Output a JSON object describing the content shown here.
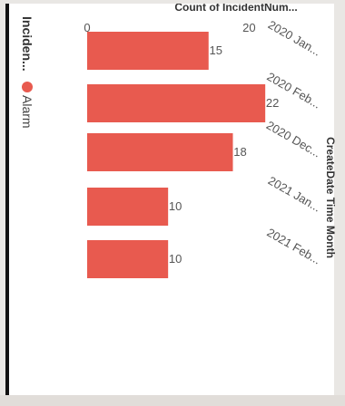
{
  "legend": {
    "title": "Inciden...",
    "items": [
      {
        "label": "Alarm",
        "color": "#e85a4f"
      }
    ]
  },
  "chart_data": {
    "type": "bar",
    "orientation": "rotated-90-clockwise",
    "categories": [
      "2020 Jan...",
      "2020 Feb...",
      "2020 Dec...",
      "2021 Jan...",
      "2021 Feb..."
    ],
    "series": [
      {
        "name": "Alarm",
        "values": [
          15,
          22,
          18,
          10,
          10
        ],
        "color": "#e85a4f"
      }
    ],
    "xlabel": "CreateDate Time Month",
    "ylabel": "Count of IncidentNum...",
    "yticks": [
      0,
      20
    ],
    "ylim": [
      0,
      24
    ],
    "data_labels": true,
    "grid": false,
    "legend_position": "top-left"
  }
}
